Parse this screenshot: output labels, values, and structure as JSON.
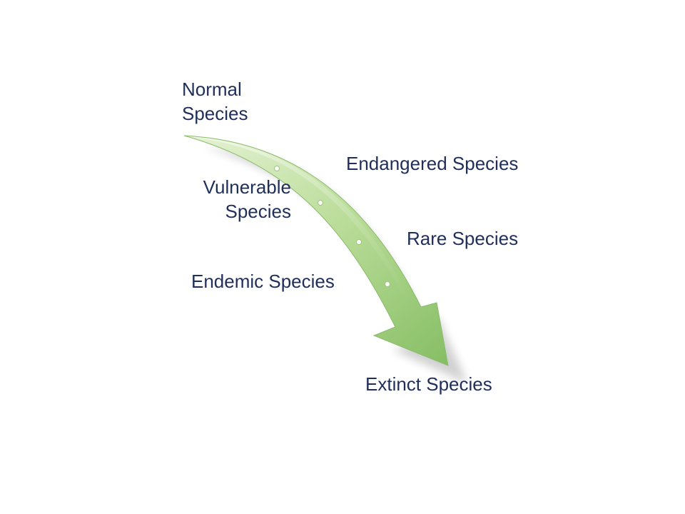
{
  "diagram": {
    "labels": {
      "normal": [
        "Normal",
        "Species"
      ],
      "vulnerable": [
        "Vulnerable",
        "Species"
      ],
      "endemic": "Endemic Species",
      "endangered": "Endangered Species",
      "rare": "Rare Species",
      "extinct": "Extinct Species"
    },
    "colors": {
      "text": "#1f2f5a",
      "arrow_light": "#d8edbf",
      "arrow_dark": "#8cc06a",
      "arrow_edge": "#7fae5f"
    }
  }
}
